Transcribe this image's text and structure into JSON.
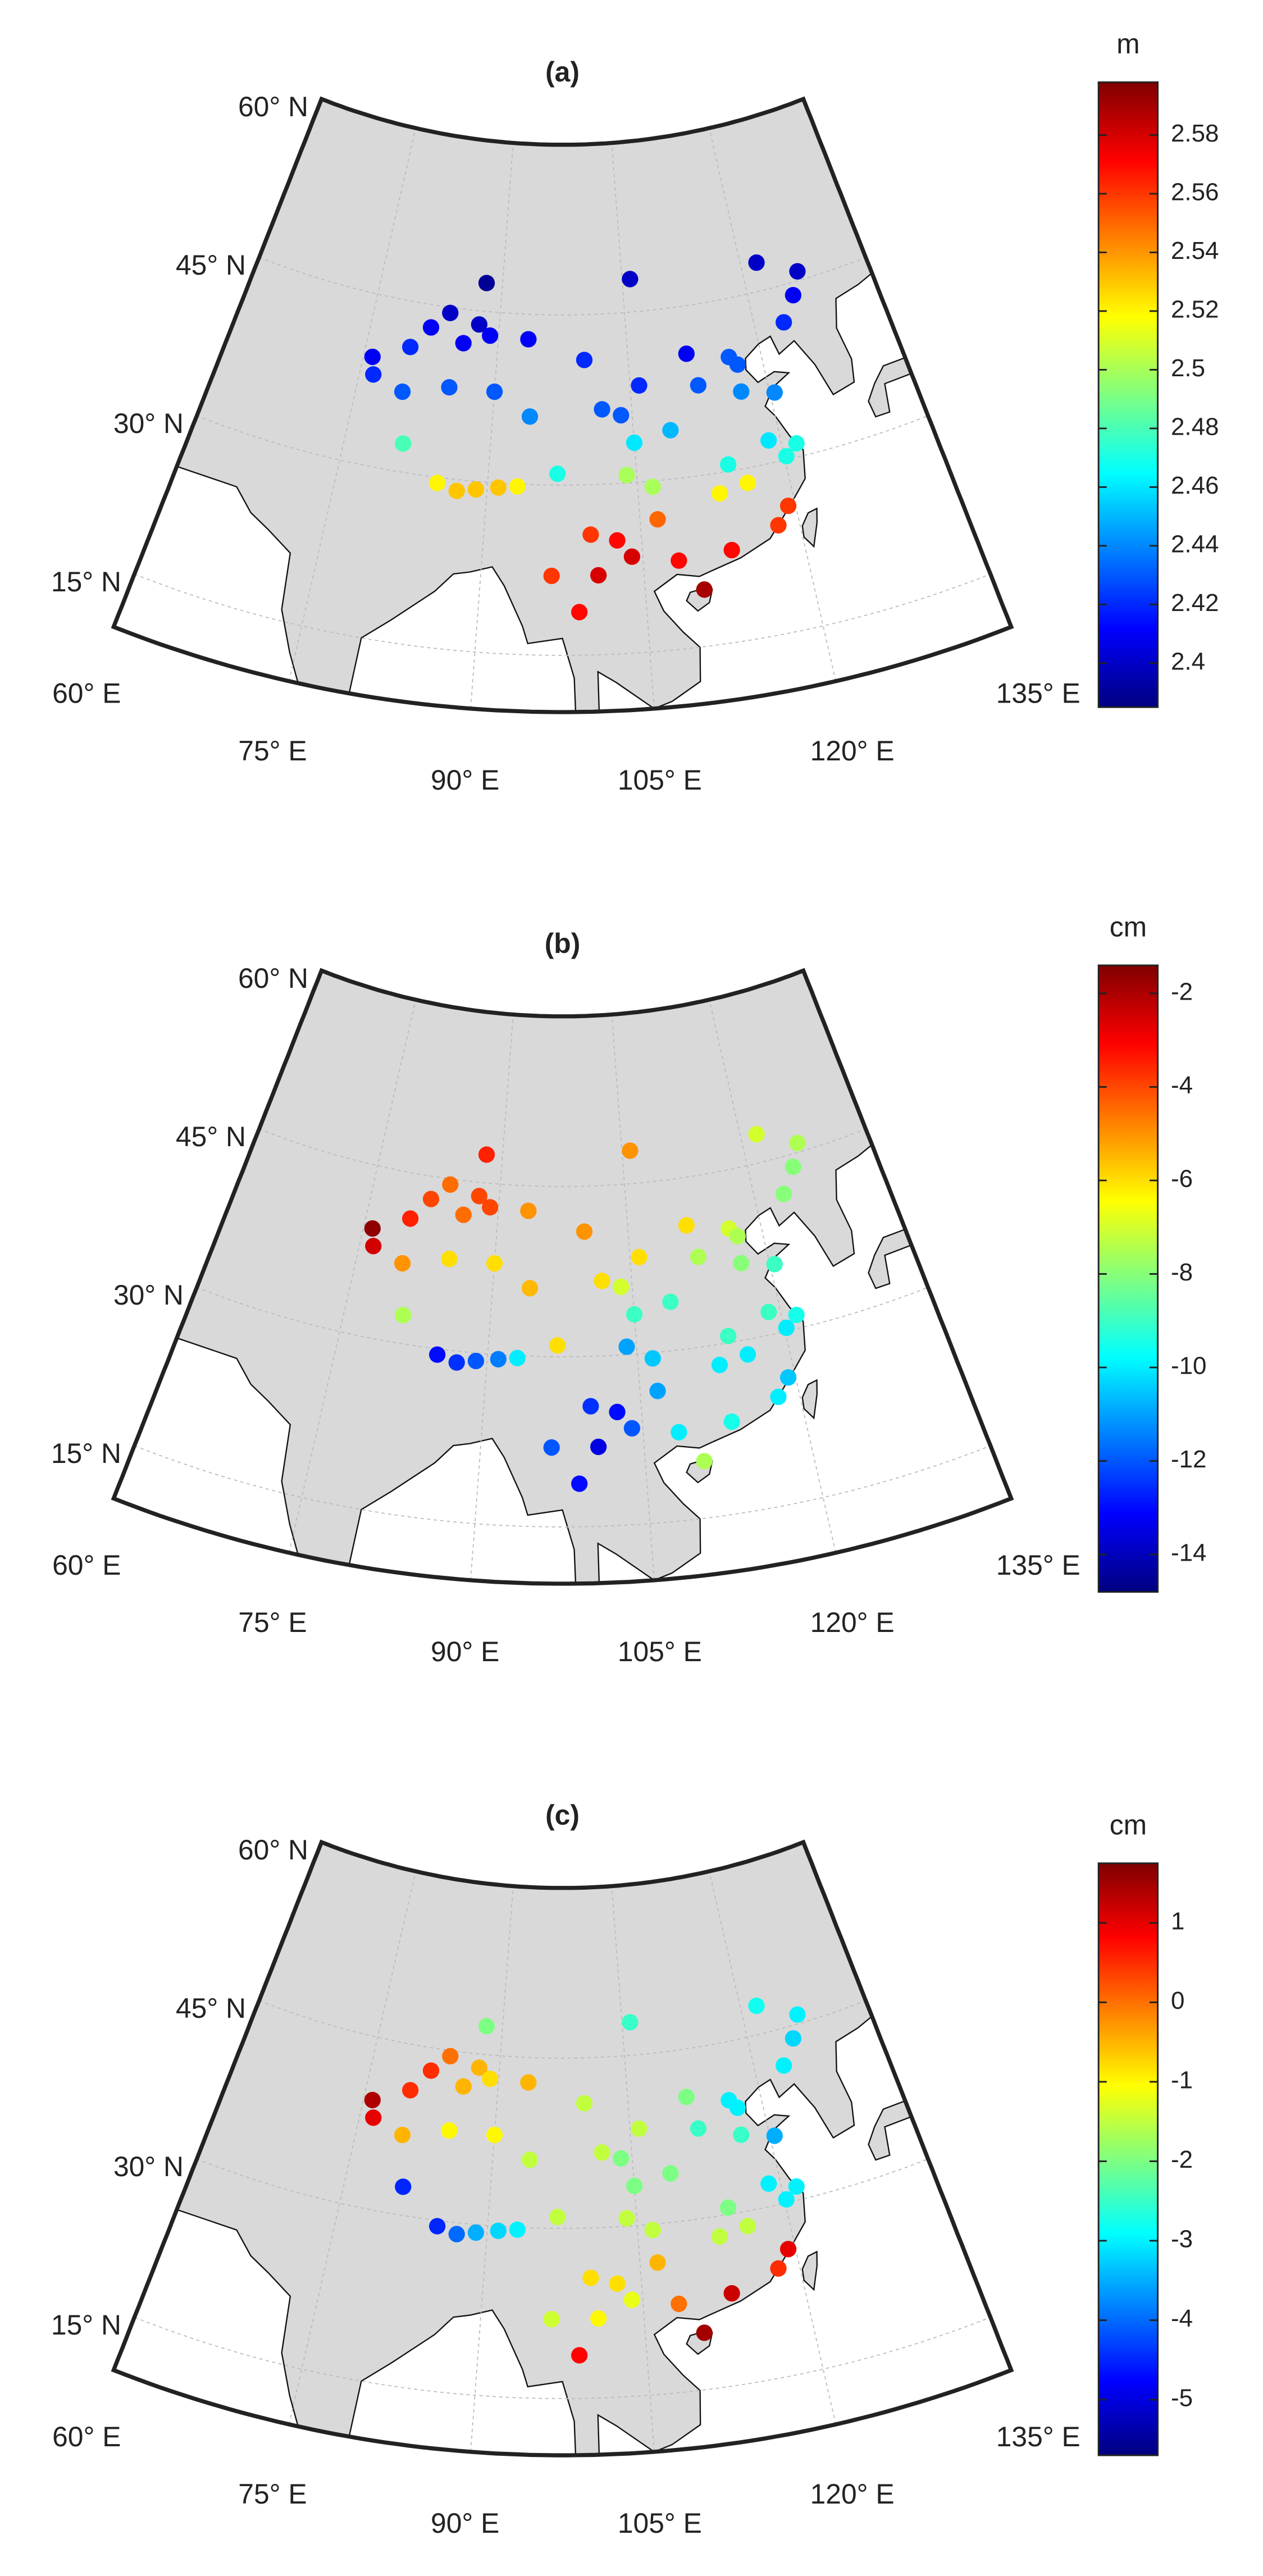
{
  "graticule": {
    "lat_labels": [
      {
        "value": 60,
        "label": "60° N"
      },
      {
        "value": 45,
        "label": "45° N"
      },
      {
        "value": 30,
        "label": "30° N"
      },
      {
        "value": 15,
        "label": "15° N"
      }
    ],
    "lon_labels": [
      {
        "value": 60,
        "label": "60° E"
      },
      {
        "value": 75,
        "label": "75° E"
      },
      {
        "value": 90,
        "label": "90° E"
      },
      {
        "value": 105,
        "label": "105° E"
      },
      {
        "value": 120,
        "label": "120° E"
      },
      {
        "value": 135,
        "label": "135° E"
      }
    ]
  },
  "stations": {
    "lon": [
      76,
      76.5,
      80,
      82,
      84,
      87.6,
      86,
      89,
      93.5,
      88,
      80,
      85,
      90,
      94,
      81,
      85,
      87,
      88.9,
      91.1,
      93,
      97,
      101.8,
      103.8,
      106,
      111.7,
      100,
      106,
      108.9,
      104,
      106.5,
      102.7,
      100.2,
      100.8,
      104,
      96.5,
      99,
      106.7,
      108.3,
      110.3,
      113,
      114.3,
      113.3,
      118,
      119.3,
      120.2,
      121.5,
      118.8,
      117,
      116.4,
      117.2,
      123.4,
      125.3,
      126.6,
      122,
      115.9,
      120.5,
      105,
      112.5
    ],
    "lat": [
      39.5,
      38,
      41,
      43,
      44.5,
      43.8,
      42,
      42.9,
      42.8,
      47.5,
      37,
      38,
      38,
      36,
      32.5,
      29.5,
      29,
      29.3,
      29.6,
      29.8,
      31,
      36.6,
      36,
      38.5,
      40.8,
      41,
      47.9,
      34.3,
      30.7,
      29.5,
      25,
      25.6,
      22,
      23.5,
      22,
      18.8,
      26.6,
      22.8,
      20,
      28.2,
      30.6,
      23.1,
      24.5,
      26,
      30.3,
      31.2,
      32,
      36.7,
      39.9,
      39.1,
      41.8,
      43.9,
      45.8,
      47.5,
      28.7,
      36,
      33.5,
      37.9
    ]
  },
  "panels": [
    {
      "title": "(a)",
      "unit": "m",
      "colormap": "jet",
      "clim": [
        2.385,
        2.598
      ],
      "ticks": [
        2.4,
        2.42,
        2.44,
        2.46,
        2.48,
        2.5,
        2.52,
        2.54,
        2.56,
        2.58
      ],
      "values": [
        2.41,
        2.42,
        2.42,
        2.41,
        2.4,
        2.4,
        2.41,
        2.41,
        2.41,
        2.39,
        2.43,
        2.43,
        2.43,
        2.44,
        2.48,
        2.52,
        2.53,
        2.53,
        2.53,
        2.52,
        2.47,
        2.43,
        2.43,
        2.42,
        2.41,
        2.42,
        2.4,
        2.45,
        2.5,
        2.5,
        2.57,
        2.56,
        2.58,
        2.58,
        2.56,
        2.57,
        2.55,
        2.57,
        2.59,
        2.52,
        2.47,
        2.57,
        2.56,
        2.56,
        2.47,
        2.47,
        2.46,
        2.44,
        2.43,
        2.43,
        2.42,
        2.41,
        2.4,
        2.4,
        2.52,
        2.44,
        2.46,
        2.43
      ]
    },
    {
      "title": "(b)",
      "unit": "cm",
      "colormap": "jet",
      "clim": [
        -14.8,
        -1.4
      ],
      "ticks": [
        -14,
        -12,
        -10,
        -8,
        -6,
        -4,
        -2
      ],
      "values": [
        -1.6,
        -2.5,
        -3.5,
        -4,
        -4.5,
        -4,
        -4.5,
        -4,
        -5,
        -3.5,
        -5,
        -6,
        -6,
        -5.5,
        -7.5,
        -13,
        -12.5,
        -12,
        -11.5,
        -10,
        -6,
        -6,
        -7,
        -6,
        -6,
        -5,
        -5,
        -9,
        -11,
        -10.5,
        -13,
        -12.5,
        -13.5,
        -12,
        -12,
        -13,
        -11,
        -10,
        -7.5,
        -10,
        -9,
        -9.5,
        -10,
        -10.5,
        -10,
        -9.5,
        -9,
        -8,
        -7,
        -7.5,
        -8,
        -8,
        -7.5,
        -7,
        -10,
        -9,
        -9,
        -7.5
      ]
    },
    {
      "title": "(c)",
      "unit": "cm",
      "colormap": "jet",
      "clim": [
        -5.7,
        1.75
      ],
      "ticks": [
        -5,
        -4,
        -3,
        -2,
        -1,
        0,
        1
      ],
      "values": [
        1.4,
        1,
        0.5,
        0.5,
        0,
        -0.5,
        -0.5,
        -0.8,
        -0.5,
        -2,
        -0.5,
        -1,
        -1,
        -1.5,
        -4.5,
        -4.5,
        -4,
        -3.5,
        -3.2,
        -3,
        -1.5,
        -1.5,
        -2,
        -1.5,
        -2,
        -1.5,
        -2.5,
        -2,
        -1.5,
        -1.5,
        -0.8,
        -0.8,
        -1,
        -1.2,
        -1.4,
        0.8,
        -0.5,
        0,
        1.5,
        -1.5,
        -2,
        1.2,
        0.5,
        1,
        -3,
        -3,
        -3,
        -2.5,
        -3,
        -3,
        -3,
        -3.2,
        -3,
        -2.8,
        -1.5,
        -3.5,
        -2,
        -2.5
      ]
    }
  ]
}
